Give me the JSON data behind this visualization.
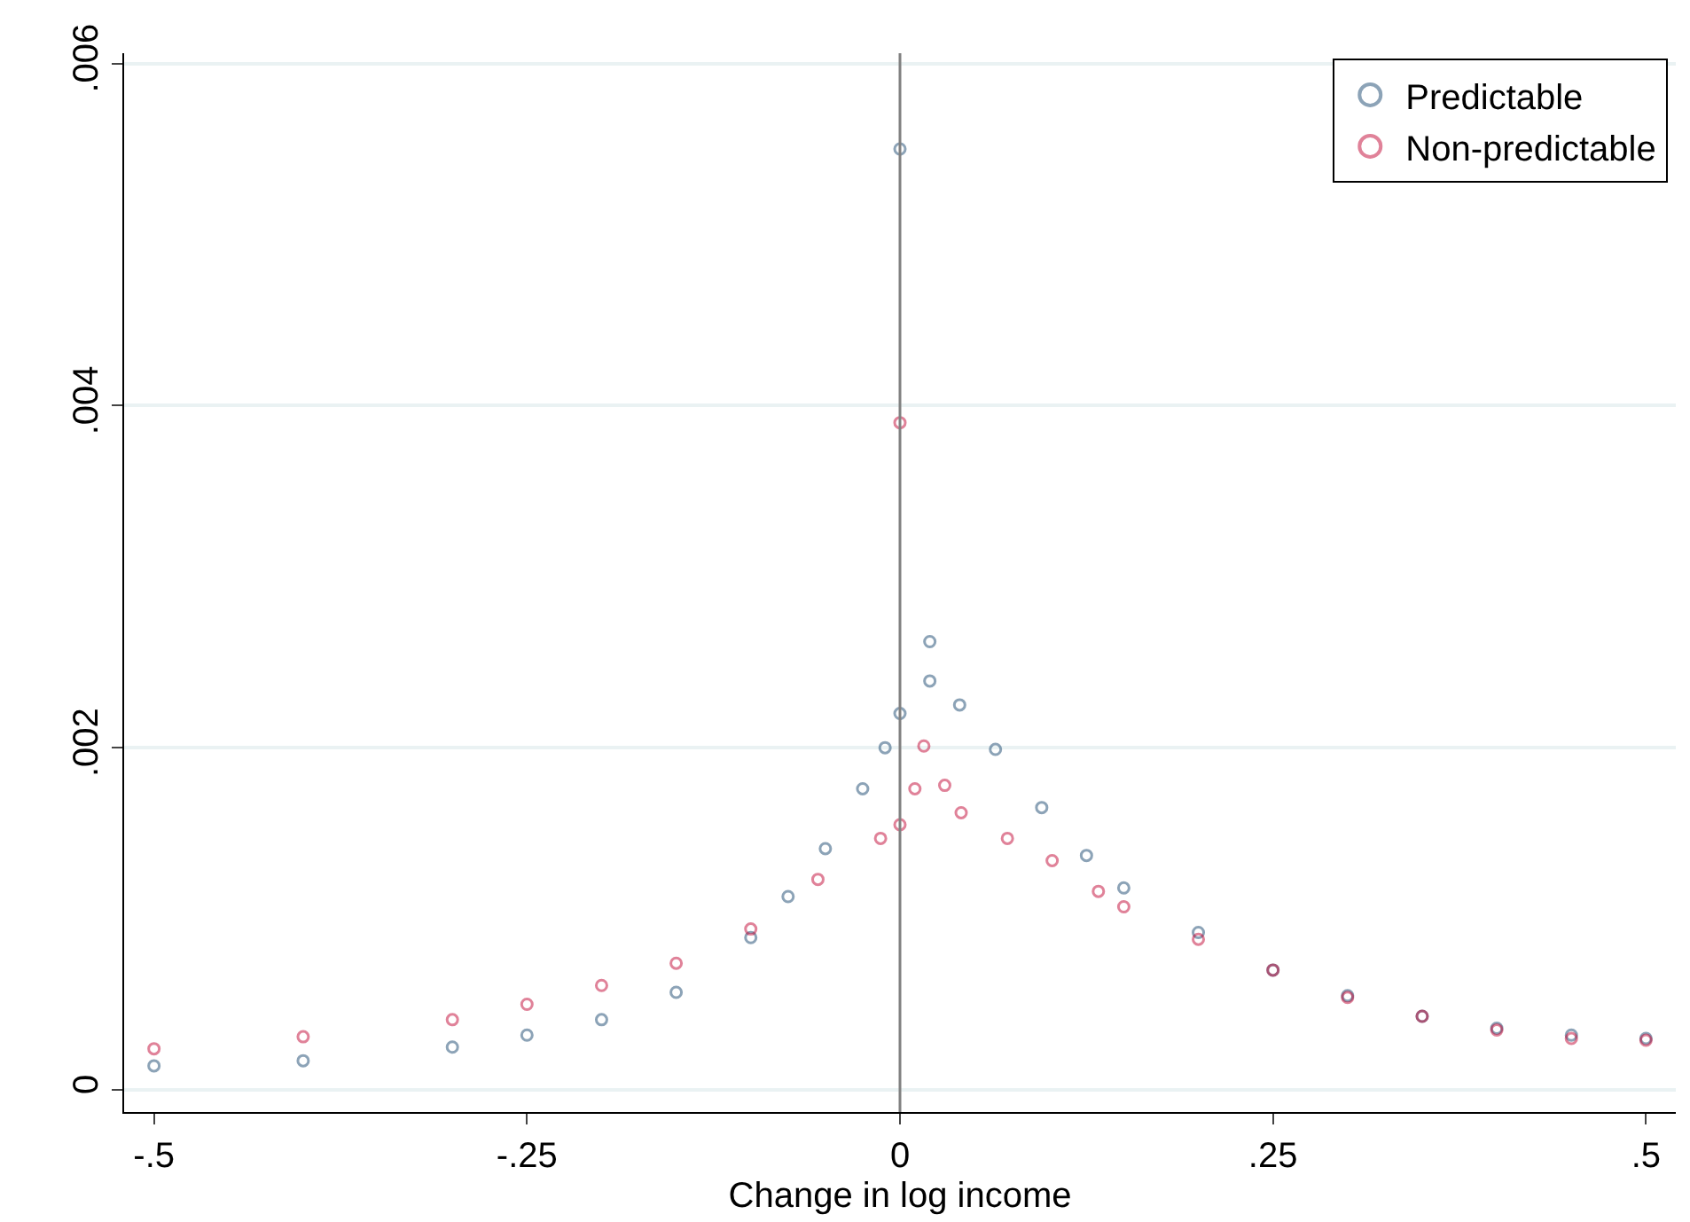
{
  "chart_data": {
    "type": "scatter",
    "xlabel": "Change in log income",
    "xlim": [
      -0.52,
      0.52
    ],
    "xticks": [
      {
        "value": -0.5,
        "label": "-.5"
      },
      {
        "value": -0.25,
        "label": "-.25"
      },
      {
        "value": 0,
        "label": "0"
      },
      {
        "value": 0.25,
        "label": ".25"
      },
      {
        "value": 0.5,
        "label": ".5"
      }
    ],
    "ylim": [
      -0.00013,
      0.00606
    ],
    "yticks": [
      {
        "value": 0,
        "label": "0"
      },
      {
        "value": 0.002,
        "label": ".002"
      },
      {
        "value": 0.004,
        "label": ".004"
      },
      {
        "value": 0.006,
        "label": ".006"
      }
    ],
    "grid": "y",
    "legend": "top right",
    "marker": "circle",
    "ref_lines": [
      {
        "axis": "x",
        "value": 0,
        "color": "#808080"
      }
    ],
    "series": [
      {
        "name": "Predictable",
        "color": "#1a476f",
        "x": [
          -0.5,
          -0.4,
          -0.3,
          -0.25,
          -0.2,
          -0.15,
          -0.1,
          -0.075,
          -0.05,
          -0.025,
          -0.01,
          0,
          0,
          0.02,
          0.02,
          0.04,
          0.064,
          0.095,
          0.125,
          0.15,
          0.2,
          0.25,
          0.3,
          0.35,
          0.4,
          0.45,
          0.5
        ],
        "values": [
          0.00014,
          0.00017,
          0.00025,
          0.00032,
          0.00041,
          0.00057,
          0.00089,
          0.00113,
          0.00141,
          0.00176,
          0.002,
          0.0022,
          0.0055,
          0.00239,
          0.00262,
          0.00225,
          0.00199,
          0.00165,
          0.00137,
          0.00118,
          0.00092,
          0.0007,
          0.00055,
          0.00043,
          0.00036,
          0.00032,
          0.0003
        ]
      },
      {
        "name": "Non-predictable",
        "color": "#c10534",
        "x": [
          -0.5,
          -0.4,
          -0.3,
          -0.25,
          -0.2,
          -0.15,
          -0.1,
          -0.055,
          -0.013,
          0,
          0,
          0.01,
          0.03,
          0.016,
          0.041,
          0.072,
          0.102,
          0.133,
          0.15,
          0.2,
          0.25,
          0.3,
          0.35,
          0.4,
          0.45,
          0.5
        ],
        "values": [
          0.00024,
          0.00031,
          0.00041,
          0.0005,
          0.00061,
          0.00074,
          0.00094,
          0.00123,
          0.00147,
          0.00155,
          0.0039,
          0.00176,
          0.00178,
          0.00201,
          0.00162,
          0.00147,
          0.00134,
          0.00116,
          0.00107,
          0.00088,
          0.0007,
          0.00054,
          0.00043,
          0.00035,
          0.0003,
          0.00029
        ]
      }
    ]
  }
}
